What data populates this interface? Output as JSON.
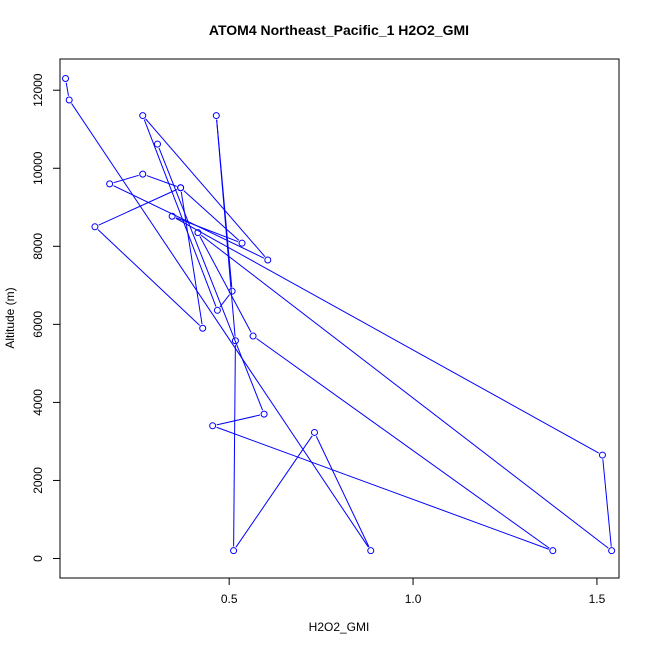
{
  "chart_data": {
    "type": "line",
    "title": "ATOM4 Northeast_Pacific_1 H2O2_GMI",
    "xlabel": "H2O2_GMI",
    "ylabel": "Altitude (m)",
    "xlim": [
      0.04,
      1.56
    ],
    "ylim": [
      -500,
      12800
    ],
    "x_ticks": [
      {
        "value": 0.5,
        "label": "0.5"
      },
      {
        "value": 1.0,
        "label": "1.0"
      },
      {
        "value": 1.5,
        "label": "1.5"
      }
    ],
    "y_ticks": [
      {
        "value": 0,
        "label": "0"
      },
      {
        "value": 2000,
        "label": "2000"
      },
      {
        "value": 4000,
        "label": "4000"
      },
      {
        "value": 6000,
        "label": "6000"
      },
      {
        "value": 8000,
        "label": "8000"
      },
      {
        "value": 10000,
        "label": "10000"
      },
      {
        "value": 12000,
        "label": "12000"
      }
    ],
    "color": "#0000ff",
    "marker": "open-circle",
    "series": [
      {
        "points": [
          {
            "x": 0.055,
            "y": 12300
          },
          {
            "x": 0.065,
            "y": 11750
          },
          {
            "x": 0.885,
            "y": 200
          },
          {
            "x": 0.732,
            "y": 3230
          },
          {
            "x": 0.512,
            "y": 200
          },
          {
            "x": 0.517,
            "y": 5580
          },
          {
            "x": 0.465,
            "y": 11350
          },
          {
            "x": 0.508,
            "y": 6850
          },
          {
            "x": 0.468,
            "y": 6360
          },
          {
            "x": 0.265,
            "y": 11350
          },
          {
            "x": 0.605,
            "y": 7650
          },
          {
            "x": 0.175,
            "y": 9600
          },
          {
            "x": 0.265,
            "y": 9850
          },
          {
            "x": 0.368,
            "y": 9500
          },
          {
            "x": 0.428,
            "y": 5900
          },
          {
            "x": 0.135,
            "y": 8500
          },
          {
            "x": 0.368,
            "y": 9500
          },
          {
            "x": 0.535,
            "y": 8080
          },
          {
            "x": 0.345,
            "y": 8770
          },
          {
            "x": 1.515,
            "y": 2650
          },
          {
            "x": 1.54,
            "y": 200
          },
          {
            "x": 0.415,
            "y": 8350
          },
          {
            "x": 0.565,
            "y": 5700
          },
          {
            "x": 1.38,
            "y": 200
          },
          {
            "x": 0.455,
            "y": 3400
          },
          {
            "x": 0.595,
            "y": 3700
          },
          {
            "x": 0.305,
            "y": 10620
          }
        ]
      }
    ]
  }
}
